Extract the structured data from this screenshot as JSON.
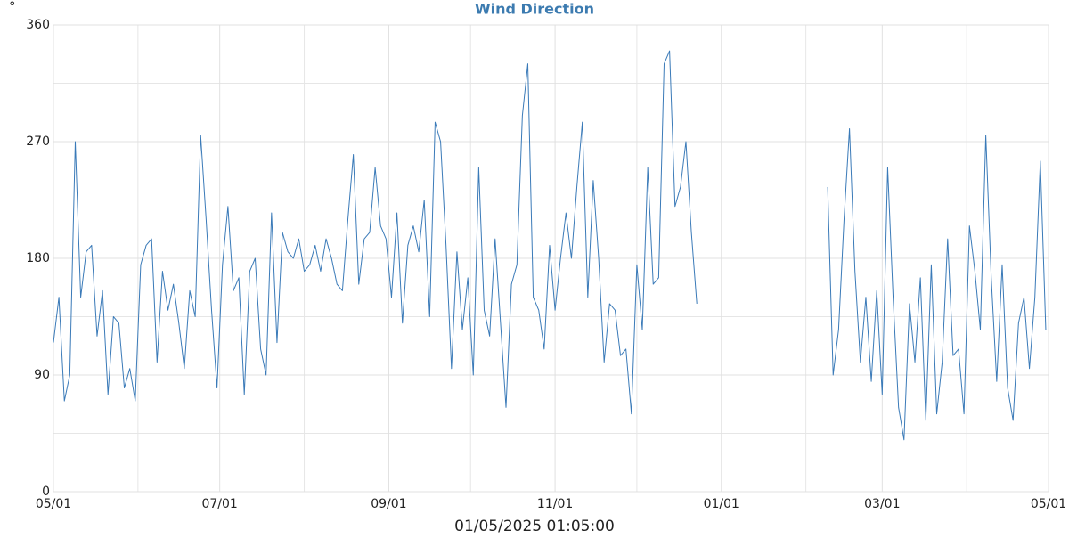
{
  "chart_data": {
    "type": "line",
    "title": "Wind Direction",
    "y_unit": "°",
    "x_title": "01/05/2025 01:05:00",
    "grid": true,
    "ylim": [
      0,
      360
    ],
    "yticks": [
      0,
      90,
      180,
      270,
      360
    ],
    "yminor": [
      45,
      135,
      225,
      315
    ],
    "xlim": [
      "2024-05-01",
      "2025-05-01"
    ],
    "xticks": [
      {
        "value": "2024-05-01",
        "label": "05/01"
      },
      {
        "value": "2024-07-01",
        "label": "07/01"
      },
      {
        "value": "2024-09-01",
        "label": "09/01"
      },
      {
        "value": "2024-11-01",
        "label": "11/01"
      },
      {
        "value": "2025-01-01",
        "label": "01/01"
      },
      {
        "value": "2025-03-01",
        "label": "03/01"
      },
      {
        "value": "2025-05-01",
        "label": "05/01"
      }
    ],
    "xminor": [
      "2024-06-01",
      "2024-08-01",
      "2024-10-01",
      "2024-12-01",
      "2025-02-01",
      "2025-04-01"
    ],
    "x": [
      "2024-05-01",
      "2024-05-03",
      "2024-05-05",
      "2024-05-07",
      "2024-05-09",
      "2024-05-11",
      "2024-05-13",
      "2024-05-15",
      "2024-05-17",
      "2024-05-19",
      "2024-05-21",
      "2024-05-23",
      "2024-05-25",
      "2024-05-27",
      "2024-05-29",
      "2024-05-31",
      "2024-06-02",
      "2024-06-04",
      "2024-06-06",
      "2024-06-08",
      "2024-06-10",
      "2024-06-12",
      "2024-06-14",
      "2024-06-16",
      "2024-06-18",
      "2024-06-20",
      "2024-06-22",
      "2024-06-24",
      "2024-06-26",
      "2024-06-28",
      "2024-06-30",
      "2024-07-02",
      "2024-07-04",
      "2024-07-06",
      "2024-07-08",
      "2024-07-10",
      "2024-07-12",
      "2024-07-14",
      "2024-07-16",
      "2024-07-18",
      "2024-07-20",
      "2024-07-22",
      "2024-07-24",
      "2024-07-26",
      "2024-07-28",
      "2024-07-30",
      "2024-08-01",
      "2024-08-03",
      "2024-08-05",
      "2024-08-07",
      "2024-08-09",
      "2024-08-11",
      "2024-08-13",
      "2024-08-15",
      "2024-08-17",
      "2024-08-19",
      "2024-08-21",
      "2024-08-23",
      "2024-08-25",
      "2024-08-27",
      "2024-08-29",
      "2024-08-31",
      "2024-09-02",
      "2024-09-04",
      "2024-09-06",
      "2024-09-08",
      "2024-09-10",
      "2024-09-12",
      "2024-09-14",
      "2024-09-16",
      "2024-09-18",
      "2024-09-20",
      "2024-09-22",
      "2024-09-24",
      "2024-09-26",
      "2024-09-28",
      "2024-09-30",
      "2024-10-02",
      "2024-10-04",
      "2024-10-06",
      "2024-10-08",
      "2024-10-10",
      "2024-10-12",
      "2024-10-14",
      "2024-10-16",
      "2024-10-18",
      "2024-10-20",
      "2024-10-22",
      "2024-10-24",
      "2024-10-26",
      "2024-10-28",
      "2024-10-30",
      "2024-11-01",
      "2024-11-03",
      "2024-11-05",
      "2024-11-07",
      "2024-11-09",
      "2024-11-11",
      "2024-11-13",
      "2024-11-15",
      "2024-11-17",
      "2024-11-19",
      "2024-11-21",
      "2024-11-23",
      "2024-11-25",
      "2024-11-27",
      "2024-11-29",
      "2024-12-01",
      "2024-12-03",
      "2024-12-05",
      "2024-12-07",
      "2024-12-09",
      "2024-12-11",
      "2024-12-13",
      "2024-12-15",
      "2024-12-17",
      "2024-12-19",
      "2024-12-21",
      "2024-12-23",
      "2024-12-25",
      "2025-02-09",
      "2025-02-11",
      "2025-02-13",
      "2025-02-15",
      "2025-02-17",
      "2025-02-19",
      "2025-02-21",
      "2025-02-23",
      "2025-02-25",
      "2025-02-27",
      "2025-03-01",
      "2025-03-03",
      "2025-03-05",
      "2025-03-07",
      "2025-03-09",
      "2025-03-11",
      "2025-03-13",
      "2025-03-15",
      "2025-03-17",
      "2025-03-19",
      "2025-03-21",
      "2025-03-23",
      "2025-03-25",
      "2025-03-27",
      "2025-03-29",
      "2025-03-31",
      "2025-04-02",
      "2025-04-04",
      "2025-04-06",
      "2025-04-08",
      "2025-04-10",
      "2025-04-12",
      "2025-04-14",
      "2025-04-16",
      "2025-04-18",
      "2025-04-20",
      "2025-04-22",
      "2025-04-24",
      "2025-04-26",
      "2025-04-28",
      "2025-04-30"
    ],
    "series": [
      {
        "name": "Wind Direction",
        "color": "#3a7ab8",
        "values": [
          115,
          150,
          70,
          90,
          270,
          150,
          185,
          190,
          120,
          155,
          75,
          135,
          130,
          80,
          95,
          70,
          175,
          190,
          195,
          100,
          170,
          140,
          160,
          130,
          95,
          155,
          135,
          275,
          210,
          140,
          80,
          175,
          220,
          155,
          165,
          75,
          170,
          180,
          110,
          90,
          215,
          115,
          200,
          185,
          180,
          195,
          170,
          175,
          190,
          170,
          195,
          180,
          160,
          155,
          210,
          260,
          160,
          195,
          200,
          250,
          205,
          195,
          150,
          215,
          130,
          190,
          205,
          185,
          225,
          135,
          285,
          270,
          190,
          95,
          185,
          125,
          165,
          90,
          250,
          140,
          120,
          195,
          130,
          65,
          160,
          175,
          290,
          330,
          150,
          140,
          110,
          190,
          140,
          180,
          215,
          180,
          235,
          285,
          150,
          240,
          180,
          100,
          145,
          140,
          105,
          110,
          60,
          175,
          125,
          250,
          160,
          165,
          330,
          340,
          220,
          235,
          270,
          200,
          145,
          null,
          235,
          90,
          125,
          210,
          280,
          170,
          100,
          150,
          85,
          155,
          75,
          250,
          150,
          65,
          40,
          145,
          100,
          165,
          55,
          175,
          60,
          100,
          195,
          105,
          110,
          60,
          205,
          170,
          125,
          275,
          165,
          85,
          175,
          80,
          55,
          130,
          150,
          95,
          150,
          255,
          125
        ]
      }
    ]
  }
}
